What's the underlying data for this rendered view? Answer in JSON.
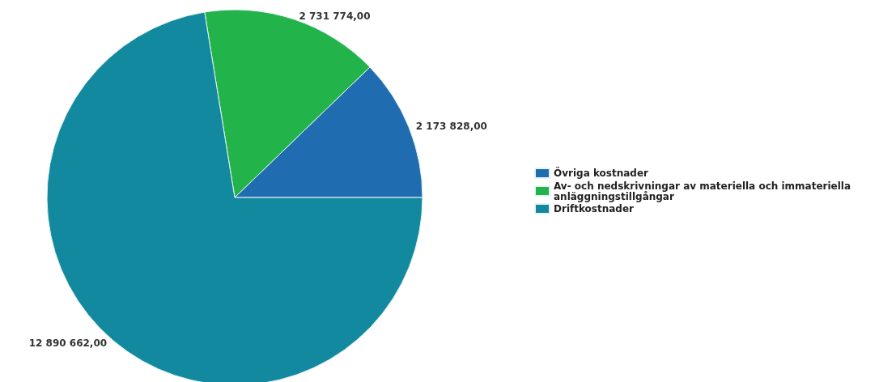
{
  "chart_data": {
    "type": "pie",
    "categories": [
      "Övriga kostnader",
      "Av- och nedskrivningar av materiella och immateriella anläggningstillgångar",
      "Driftkostnader"
    ],
    "values": [
      2173828.0,
      2731774.0,
      12890662.0
    ],
    "value_labels": [
      "2 173 828,00",
      "2 731 774,00",
      "12 890 662,00"
    ],
    "colors": [
      "#1f6db0",
      "#22b34b",
      "#12899f"
    ],
    "legend": "right"
  }
}
